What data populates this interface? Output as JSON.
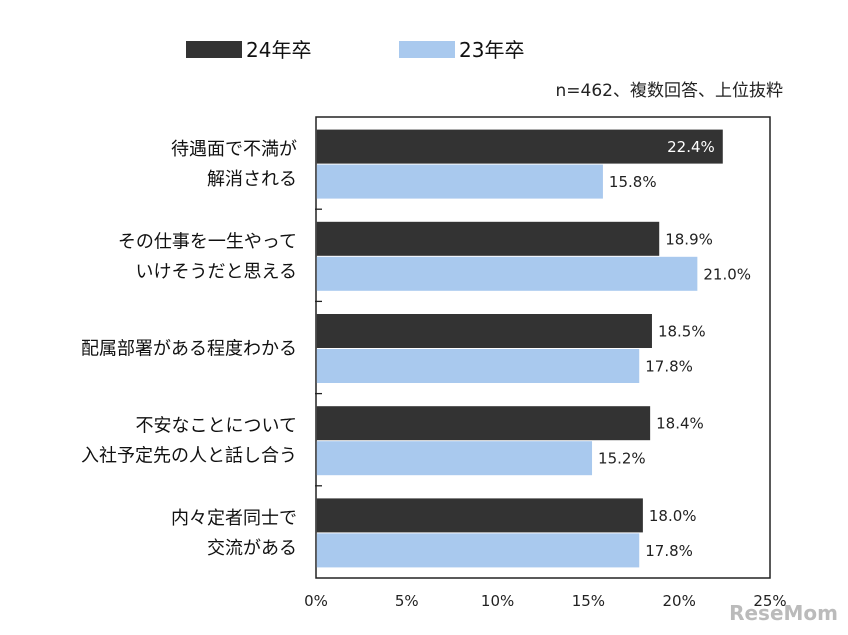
{
  "chart_data": {
    "type": "bar",
    "orientation": "horizontal",
    "categories": [
      [
        "待遇面で不満が",
        "解消される"
      ],
      [
        "その仕事を一生やって",
        "いけそうだと思える"
      ],
      [
        "配属部署がある程度わかる"
      ],
      [
        "不安なことについて",
        "入社予定先の人と話し合う"
      ],
      [
        "内々定者同士で",
        "交流がある"
      ]
    ],
    "series": [
      {
        "name": "24年卒",
        "color": "#333333",
        "values": [
          22.4,
          18.9,
          18.5,
          18.4,
          18.0
        ],
        "labels": [
          "22.4%",
          "18.9%",
          "18.5%",
          "18.4%",
          "18.0%"
        ]
      },
      {
        "name": "23年卒",
        "color": "#a9c9ee",
        "values": [
          15.8,
          21.0,
          17.8,
          15.2,
          17.8
        ],
        "labels": [
          "15.8%",
          "21.0%",
          "17.8%",
          "15.2%",
          "17.8%"
        ]
      }
    ],
    "xlim": [
      0,
      25
    ],
    "x_ticks": [
      "0%",
      "5%",
      "10%",
      "15%",
      "20%",
      "25%"
    ],
    "annotation": "n=462、複数回答、上位抜粋",
    "legend_position": "top",
    "watermark": "ReseMom"
  }
}
